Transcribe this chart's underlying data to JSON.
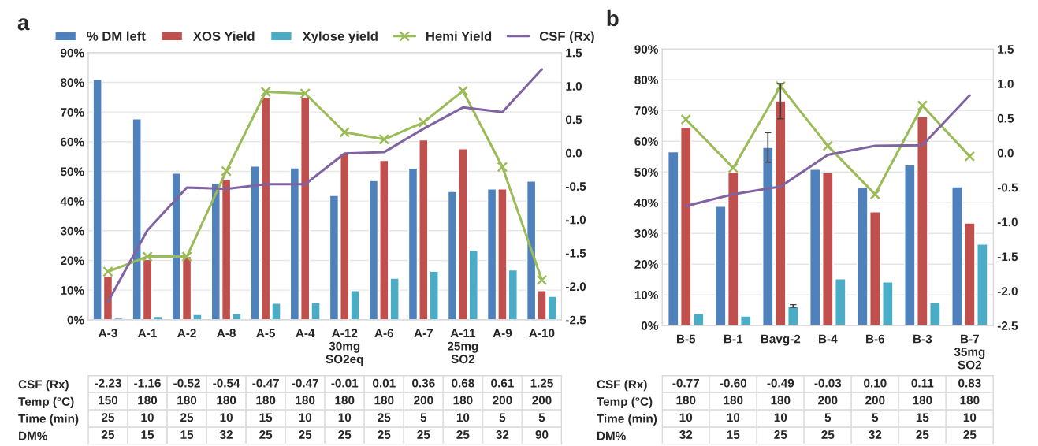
{
  "chart_data": [
    {
      "type": "bar",
      "title": "a",
      "categories": [
        "A-3",
        "A-1",
        "A-2",
        "A-8",
        "A-5",
        "A-4",
        "A-12\n30mg\nSO2eq",
        "A-6",
        "A-7",
        "A-11\n25mg\nSO2",
        "A-9",
        "A-10"
      ],
      "series": [
        {
          "name": "% DM left",
          "color": "#4f81bd",
          "values": [
            81.0,
            67.7,
            49.4,
            46.0,
            51.8,
            51.2,
            41.9,
            46.9,
            51.1,
            43.2,
            44.1,
            46.7
          ]
        },
        {
          "name": "XOS Yield",
          "color": "#c0504d",
          "values": [
            14.7,
            20.3,
            21.3,
            47.2,
            75.0,
            75.0,
            56.0,
            53.7,
            60.6,
            57.6,
            44.1,
            9.8
          ]
        },
        {
          "name": "Xylose yield",
          "color": "#4bacc6",
          "values": [
            0.6,
            1.1,
            1.8,
            2.1,
            5.6,
            5.8,
            9.8,
            14.0,
            16.3,
            23.3,
            16.8,
            7.9
          ]
        },
        {
          "name": "Hemi Yield",
          "type": "line",
          "marker": "cross",
          "color": "#9bbb59",
          "values": [
            16.2,
            21.3,
            21.3,
            50.1,
            76.8,
            76.2,
            63.2,
            60.8,
            66.5,
            77.1,
            51.5,
            13.4
          ]
        },
        {
          "name": "CSF (Rx)",
          "type": "line",
          "axis": "y2",
          "color": "#8064a2",
          "values": [
            -2.23,
            -1.16,
            -0.52,
            -0.54,
            -0.47,
            -0.47,
            -0.01,
            0.01,
            0.36,
            0.68,
            0.61,
            1.25
          ]
        }
      ],
      "ylim": [
        0,
        90
      ],
      "yticks": [
        {
          "value": 0,
          "label": "0%"
        },
        {
          "value": 10,
          "label": "10%"
        },
        {
          "value": 20,
          "label": "20%"
        },
        {
          "value": 30,
          "label": "30%"
        },
        {
          "value": 40,
          "label": "40%"
        },
        {
          "value": 50,
          "label": "50%"
        },
        {
          "value": 60,
          "label": "60%"
        },
        {
          "value": 70,
          "label": "70%"
        },
        {
          "value": 80,
          "label": "80%"
        },
        {
          "value": 90,
          "label": "90%"
        }
      ],
      "y2lim": [
        -2.5,
        1.5
      ],
      "y2ticks": [
        {
          "value": -2.5,
          "label": "-2.5"
        },
        {
          "value": -2.0,
          "label": "-2.0"
        },
        {
          "value": -1.5,
          "label": "-1.5"
        },
        {
          "value": -1.0,
          "label": "-1.0"
        },
        {
          "value": -0.5,
          "label": "-0.5"
        },
        {
          "value": 0,
          "label": "0.0"
        },
        {
          "value": 0.5,
          "label": "0.5"
        },
        {
          "value": 1.0,
          "label": "1.0"
        },
        {
          "value": 1.5,
          "label": "1.5"
        }
      ],
      "grid": "y",
      "legend": "top"
    },
    {
      "type": "heatmap",
      "categories": [
        null,
        null,
        null,
        null,
        null,
        null,
        null,
        null,
        null,
        null,
        null,
        null
      ],
      "y_categories": [
        "CSF (Rx)",
        "Temp (°C)",
        "Time (min)",
        "DM%"
      ],
      "cells": [
        [
          null,
          null,
          null,
          null,
          null,
          null,
          null,
          null,
          null,
          null,
          null,
          null
        ],
        [
          null,
          null,
          null,
          null,
          null,
          null,
          null,
          null,
          null,
          null,
          null,
          null
        ],
        [
          null,
          null,
          null,
          null,
          null,
          null,
          null,
          null,
          null,
          null,
          null,
          null
        ],
        [
          null,
          null,
          null,
          null,
          null,
          null,
          null,
          null,
          null,
          null,
          null,
          null
        ]
      ],
      "cell_labels": [
        [
          "-2.23",
          "-1.16",
          "-0.52",
          "-0.54",
          "-0.47",
          "-0.47",
          "-0.01",
          "0.01",
          "0.36",
          "0.68",
          "0.61",
          "1.25"
        ],
        [
          "150",
          "180",
          "180",
          "180",
          "180",
          "180",
          "180",
          "180",
          "200",
          "180",
          "200",
          "200"
        ],
        [
          "25",
          "10",
          "25",
          "10",
          "15",
          "10",
          "10",
          "25",
          "5",
          "10",
          "5",
          "5"
        ],
        [
          "25",
          "15",
          "15",
          "32",
          "25",
          "25",
          "25",
          "25",
          "25",
          "25",
          "32",
          "90"
        ]
      ]
    },
    {
      "type": "bar",
      "title": "b",
      "categories": [
        "B-5",
        "B-1",
        "Bavg-2",
        "B-4",
        "B-6",
        "B-3",
        "B-7\n35mg\nSO2"
      ],
      "series": [
        {
          "color": "#4f81bd",
          "values": [
            56.6,
            38.8,
            58.0,
            50.9,
            44.9,
            52.3,
            45.2
          ],
          "errors": [
            null,
            null,
            [
              53.2,
              62.8
            ],
            null,
            null,
            null,
            null
          ]
        },
        {
          "color": "#c0504d",
          "values": [
            64.6,
            50.0,
            73.1,
            49.7,
            37.0,
            67.9,
            33.4
          ],
          "errors": [
            null,
            null,
            [
              67.3,
              78.8
            ],
            null,
            null,
            null,
            null
          ]
        },
        {
          "color": "#4bacc6",
          "values": [
            3.9,
            3.1,
            6.2,
            15.2,
            14.2,
            7.5,
            26.5
          ],
          "errors": [
            null,
            null,
            [
              5.9,
              6.8
            ],
            null,
            null,
            null,
            null
          ]
        },
        {
          "type": "line",
          "marker": "cross",
          "color": "#9bbb59",
          "values": [
            67.1,
            51.3,
            77.9,
            58.5,
            42.7,
            71.6,
            55.1
          ]
        },
        {
          "type": "line",
          "axis": "y2",
          "color": "#8064a2",
          "values": [
            -0.77,
            -0.6,
            -0.49,
            -0.03,
            0.1,
            0.11,
            0.83
          ]
        }
      ],
      "ylim": [
        0,
        90
      ],
      "yticks": [
        {
          "value": 0,
          "label": "0%"
        },
        {
          "value": 10,
          "label": "10%"
        },
        {
          "value": 20,
          "label": "20%"
        },
        {
          "value": 30,
          "label": "30%"
        },
        {
          "value": 40,
          "label": "40%"
        },
        {
          "value": 50,
          "label": "50%"
        },
        {
          "value": 60,
          "label": "60%"
        },
        {
          "value": 70,
          "label": "70%"
        },
        {
          "value": 80,
          "label": "80%"
        },
        {
          "value": 90,
          "label": "90%"
        }
      ],
      "y2lim": [
        -2.5,
        1.5
      ],
      "y2ticks": [
        {
          "value": -2.5,
          "label": "-2.5"
        },
        {
          "value": -2.0,
          "label": "-2.0"
        },
        {
          "value": -1.5,
          "label": "-1.5"
        },
        {
          "value": -1.0,
          "label": "-1.0"
        },
        {
          "value": -0.5,
          "label": "-0.5"
        },
        {
          "value": 0,
          "label": "0.0"
        },
        {
          "value": 0.5,
          "label": "0.5"
        },
        {
          "value": 1.0,
          "label": "1.0"
        },
        {
          "value": 1.5,
          "label": "1.5"
        }
      ],
      "grid": "y"
    },
    {
      "type": "heatmap",
      "categories": [
        null,
        null,
        null,
        null,
        null,
        null,
        null
      ],
      "y_categories": [
        "CSF (Rx)",
        "Temp (°C)",
        "Time (min)",
        "DM%"
      ],
      "cells": [
        [
          null,
          null,
          null,
          null,
          null,
          null,
          null
        ],
        [
          null,
          null,
          null,
          null,
          null,
          null,
          null
        ],
        [
          null,
          null,
          null,
          null,
          null,
          null,
          null
        ],
        [
          null,
          null,
          null,
          null,
          null,
          null,
          null
        ]
      ],
      "cell_labels": [
        [
          "-0.77",
          "-0.60",
          "-0.49",
          "-0.03",
          "0.10",
          "0.11",
          "0.83"
        ],
        [
          "180",
          "180",
          "180",
          "200",
          "200",
          "180",
          "180"
        ],
        [
          "10",
          "10",
          "10",
          "5",
          "5",
          "15",
          "10"
        ],
        [
          "32",
          "15",
          "25",
          "25",
          "32",
          "25",
          "25"
        ]
      ]
    }
  ]
}
